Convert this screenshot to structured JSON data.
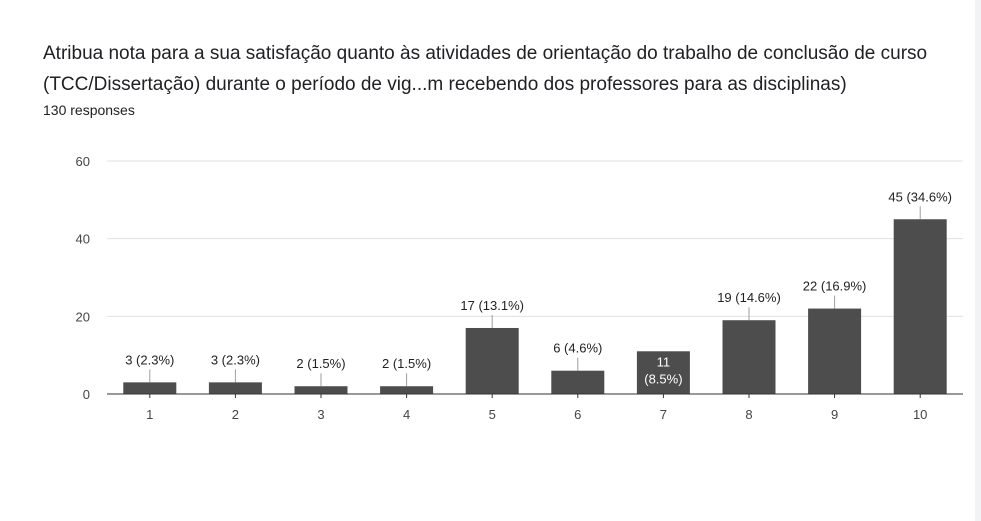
{
  "title": "Atribua nota para a sua satisfação quanto às atividades de orientação do trabalho de conclusão de curso (TCC/Dissertação) durante o período de vig...m recebendo dos professores para as disciplinas)",
  "responses_label": "130 responses",
  "chart_data": {
    "type": "bar",
    "categories": [
      "1",
      "2",
      "3",
      "4",
      "5",
      "6",
      "7",
      "8",
      "9",
      "10"
    ],
    "values": [
      3,
      3,
      2,
      2,
      17,
      6,
      11,
      19,
      22,
      45
    ],
    "data_labels": [
      "3 (2.3%)",
      "3 (2.3%)",
      "2 (1.5%)",
      "2 (1.5%)",
      "17 (13.1%)",
      "6 (4.6%)",
      "11 (8.5%)",
      "19 (14.6%)",
      "22 (16.9%)",
      "45 (34.6%)"
    ],
    "ylim": [
      0,
      60
    ],
    "yticks": [
      0,
      20,
      40,
      60
    ],
    "grid": true,
    "bar_color": "#4d4d4d",
    "grid_color": "#e0e0e0",
    "axis_color": "#333333"
  }
}
